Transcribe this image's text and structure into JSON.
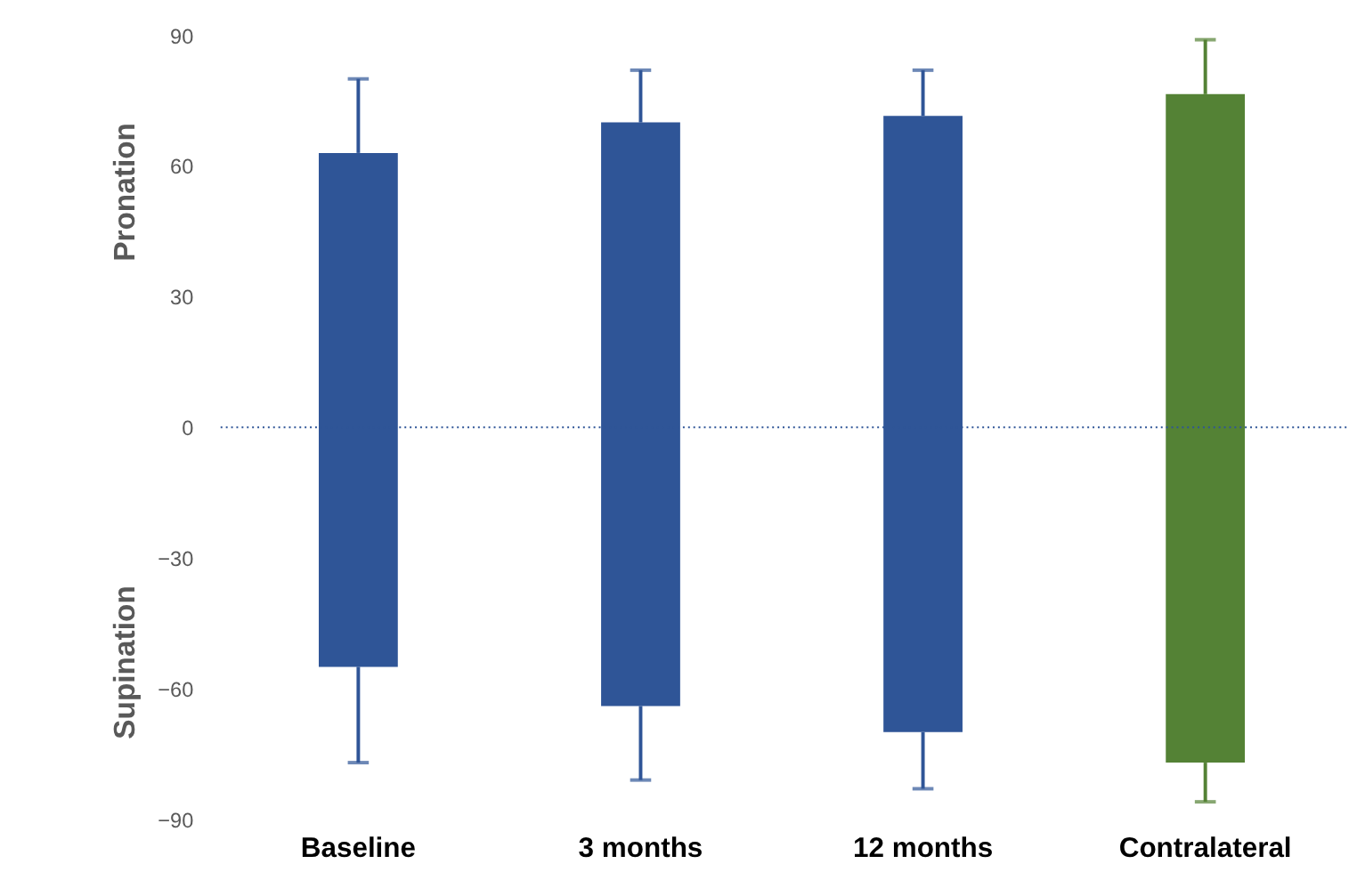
{
  "chart_data": {
    "type": "bar",
    "ylabel": "Pronation",
    "annotations": [
      "Supination"
    ],
    "categories": [
      "Baseline",
      "3 months",
      "12 months",
      "Contralateral"
    ],
    "base": [
      -55,
      -64,
      -70,
      -77
    ],
    "values": [
      118,
      134,
      141.5,
      153.5
    ],
    "colors": [
      "#2f5597",
      "#2f5597",
      "#2f5597",
      "#548235"
    ],
    "errors": [
      [
        -77,
        80
      ],
      [
        -81,
        82
      ],
      [
        -83,
        82
      ],
      [
        -86,
        89
      ]
    ],
    "ylim": [
      -90,
      90
    ],
    "yticks": [
      -90,
      -60,
      -30,
      0,
      30,
      60,
      90
    ],
    "grid": false,
    "ref_lines": [
      {
        "axis": "y",
        "value": 0,
        "color": "#2f5597",
        "line_style": "dotted"
      }
    ]
  }
}
